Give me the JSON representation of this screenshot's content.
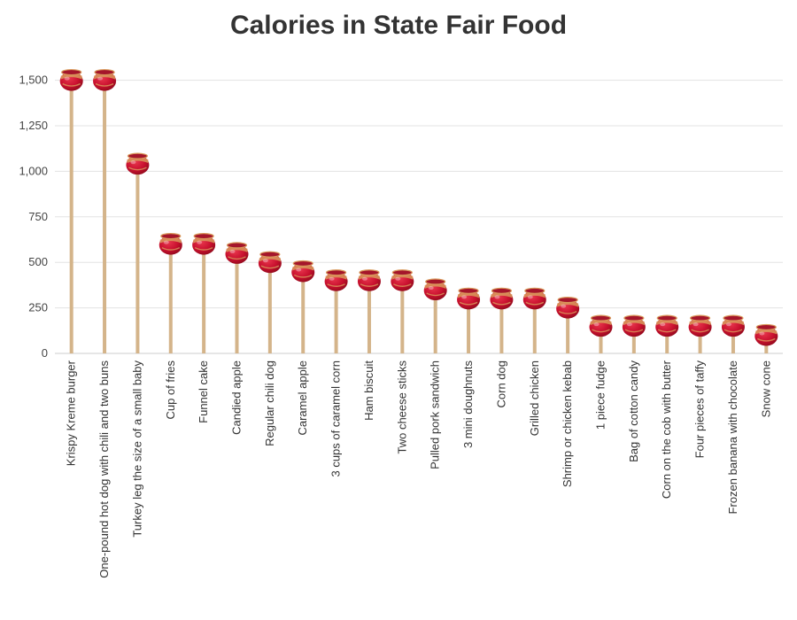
{
  "chart_data": {
    "type": "lollipop",
    "title": "Calories in State Fair Food",
    "xlabel": "",
    "ylabel": "",
    "ylim": [
      0,
      1600
    ],
    "yticks": [
      0,
      250,
      500,
      750,
      1000,
      1250,
      1500
    ],
    "ytick_labels": [
      "0",
      "250",
      "500",
      "750",
      "1,000",
      "1,250",
      "1,500"
    ],
    "grid": true,
    "categories": [
      "Krispy Kreme burger",
      "One-pound hot dog with chili and two buns",
      "Turkey leg the size of a small baby",
      "Cup of fries",
      "Funnel cake",
      "Candied apple",
      "Regular chili dog",
      "Caramel apple",
      "3 cups of caramel corn",
      "Ham biscuit",
      "Two cheese sticks",
      "Pulled pork sandwich",
      "3 mini doughnuts",
      "Corn dog",
      "Grilled chicken",
      "Shrimp or chicken kebab",
      "1 piece fudge",
      "Bag of cotton candy",
      "Corn on the cob with butter",
      "Four pieces of taffy",
      "Frozen banana with chocolate",
      "Snow cone"
    ],
    "values": [
      1500,
      1500,
      1040,
      600,
      600,
      550,
      500,
      450,
      400,
      400,
      400,
      350,
      300,
      300,
      300,
      250,
      150,
      150,
      150,
      150,
      150,
      100
    ],
    "colors": {
      "stick": "#d4b48a",
      "apple": "#c8102e",
      "apple_dark": "#8f0a1c",
      "caramel": "#d99a5c",
      "grid": "#e3e3e3",
      "axis": "#cccccc"
    },
    "marker_icon": "candy-apple-icon"
  }
}
